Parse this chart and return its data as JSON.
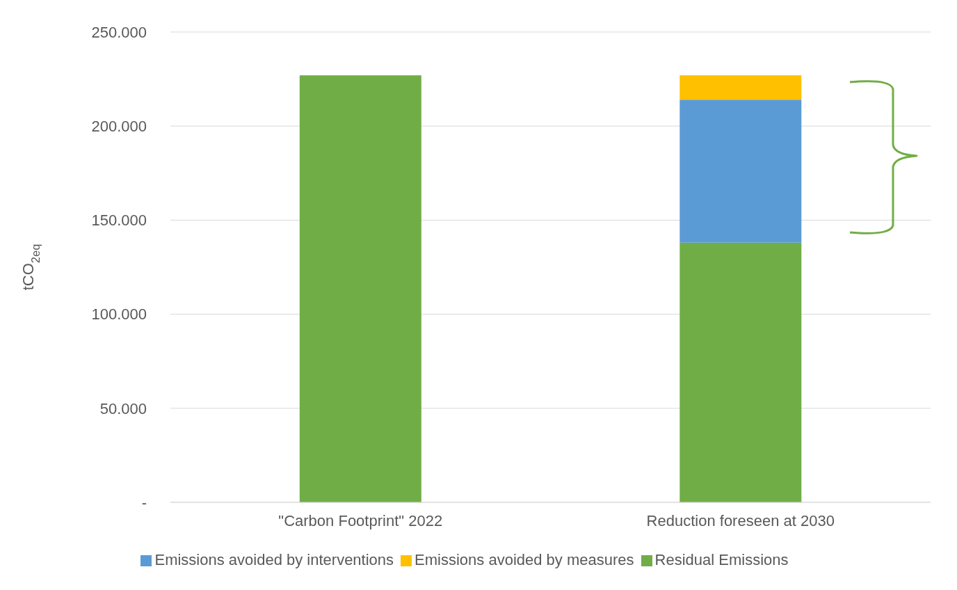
{
  "chart_data": {
    "type": "bar",
    "stacked": true,
    "ylabel": "tCO$_{2eq}$",
    "categories": [
      "\"Carbon Footprint\" 2022",
      "Reduction foreseen at 2030"
    ],
    "series": [
      {
        "name": "Residual Emissions",
        "color": "#70ad47",
        "values": [
          227000,
          138000
        ]
      },
      {
        "name": "Emissions avoided by interventions",
        "color": "#5b9bd5",
        "values": [
          null,
          76000
        ]
      },
      {
        "name": "Emissions avoided by measures",
        "color": "#ffc000",
        "values": [
          null,
          13000
        ]
      }
    ],
    "ylim": [
      0,
      250000
    ],
    "yticks": [
      {
        "value": 0,
        "label": "-"
      },
      {
        "value": 50000,
        "label": "50.000"
      },
      {
        "value": 100000,
        "label": "100.000"
      },
      {
        "value": 150000,
        "label": "150.000"
      },
      {
        "value": 200000,
        "label": "200.000"
      },
      {
        "value": 250000,
        "label": "250.000"
      }
    ],
    "grid": "y",
    "legend": "bottom"
  }
}
